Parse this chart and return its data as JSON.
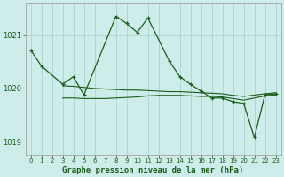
{
  "title": "Graphe pression niveau de la mer (hPa)",
  "bg_color": "#ceecea",
  "grid_color": "#a8d5d0",
  "line_color": "#1a5c1a",
  "ylim": [
    1018.75,
    1021.6
  ],
  "yticks": [
    1019,
    1020,
    1021
  ],
  "seriesA_x": [
    0,
    1,
    3,
    4,
    5,
    8,
    9,
    10,
    11,
    13,
    14,
    15,
    16,
    17,
    18,
    19,
    20,
    21,
    22,
    23
  ],
  "seriesA_y": [
    1020.72,
    1020.42,
    1020.08,
    1020.22,
    1019.88,
    1021.35,
    1021.22,
    1021.05,
    1021.32,
    1020.52,
    1020.22,
    1020.08,
    1019.95,
    1019.82,
    1019.82,
    1019.75,
    1019.72,
    1019.08,
    1019.88,
    1019.9
  ],
  "seriesB_x": [
    3,
    4,
    5,
    6,
    7,
    8,
    9,
    10,
    11,
    12,
    13,
    14,
    15,
    16,
    17,
    18,
    19,
    20,
    21,
    22,
    23
  ],
  "seriesB_y": [
    1019.82,
    1019.82,
    1019.81,
    1019.81,
    1019.81,
    1019.82,
    1019.83,
    1019.84,
    1019.86,
    1019.87,
    1019.87,
    1019.87,
    1019.86,
    1019.85,
    1019.85,
    1019.84,
    1019.81,
    1019.78,
    1019.82,
    1019.86,
    1019.88
  ],
  "seriesC_x": [
    3,
    4,
    5,
    6,
    7,
    8,
    9,
    10,
    11,
    12,
    13,
    14,
    15,
    16,
    17,
    18,
    19,
    20,
    22,
    23
  ],
  "seriesC_y": [
    1020.05,
    1020.04,
    1020.02,
    1020.0,
    1019.99,
    1019.98,
    1019.97,
    1019.97,
    1019.96,
    1019.95,
    1019.94,
    1019.94,
    1019.93,
    1019.92,
    1019.91,
    1019.9,
    1019.87,
    1019.85,
    1019.9,
    1019.92
  ]
}
